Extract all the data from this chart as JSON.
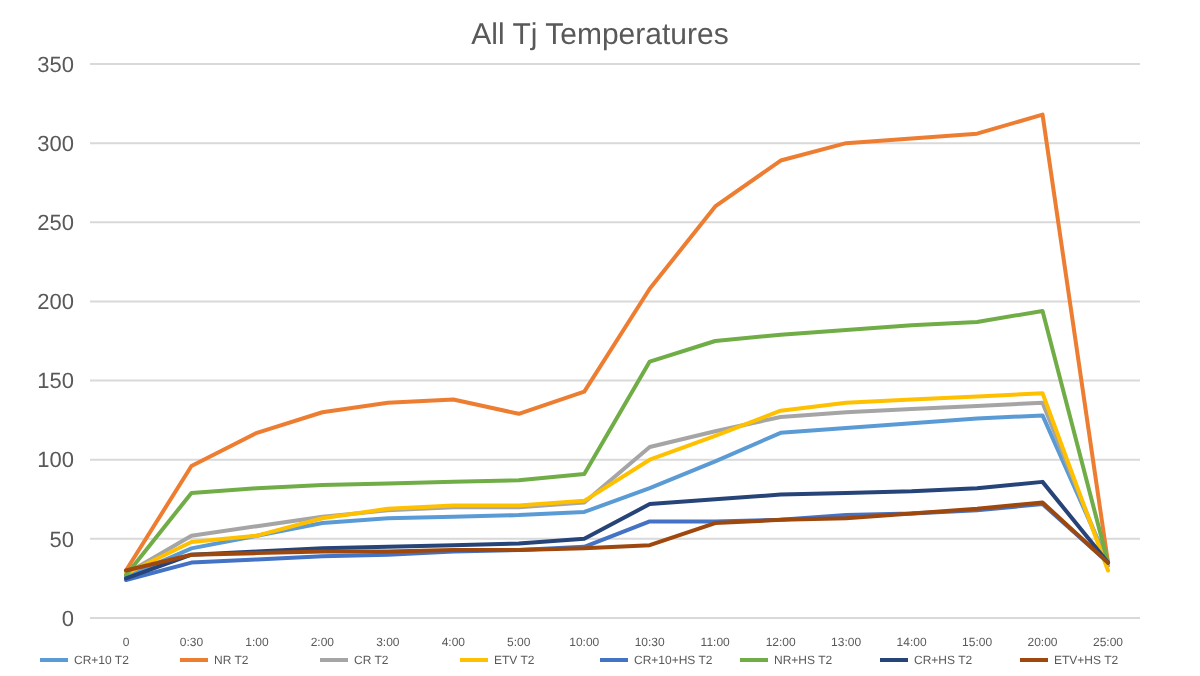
{
  "chart_data": {
    "type": "line",
    "title": "All Tj Temperatures",
    "categories": [
      "0",
      "0:30",
      "1:00",
      "2:00",
      "3:00",
      "4:00",
      "5:00",
      "10:00",
      "10:30",
      "11:00",
      "12:00",
      "13:00",
      "14:00",
      "15:00",
      "20:00",
      "25:00"
    ],
    "ylim": [
      0,
      350
    ],
    "yticks": [
      0,
      50,
      100,
      150,
      200,
      250,
      300,
      350
    ],
    "grid": "y",
    "legend": "bottom",
    "marker": "none",
    "line_style": "solid",
    "series": [
      {
        "name": "CR+10 T2",
        "color": "#5b9bd5",
        "values": [
          26,
          44,
          52,
          60,
          63,
          64,
          65,
          67,
          82,
          99,
          117,
          120,
          123,
          126,
          128,
          35
        ]
      },
      {
        "name": "NR T2",
        "color": "#ed7d31",
        "values": [
          30,
          96,
          117,
          130,
          136,
          138,
          129,
          143,
          208,
          260,
          289,
          300,
          303,
          306,
          318,
          35
        ]
      },
      {
        "name": "CR T2",
        "color": "#a5a5a5",
        "values": [
          28,
          52,
          58,
          64,
          68,
          70,
          70,
          73,
          108,
          118,
          127,
          130,
          132,
          134,
          136,
          33
        ]
      },
      {
        "name": "ETV T2",
        "color": "#ffc000",
        "values": [
          28,
          48,
          52,
          63,
          69,
          71,
          71,
          74,
          100,
          115,
          131,
          136,
          138,
          140,
          142,
          30
        ]
      },
      {
        "name": "CR+10+HS T2",
        "color": "#4472c4",
        "values": [
          24,
          35,
          37,
          39,
          40,
          42,
          43,
          45,
          61,
          61,
          62,
          65,
          66,
          68,
          72,
          35
        ]
      },
      {
        "name": "NR+HS T2",
        "color": "#70ad47",
        "values": [
          27,
          79,
          82,
          84,
          85,
          86,
          87,
          91,
          162,
          175,
          179,
          182,
          185,
          187,
          194,
          35
        ]
      },
      {
        "name": "CR+HS T2",
        "color": "#264478",
        "values": [
          25,
          40,
          42,
          44,
          45,
          46,
          47,
          50,
          72,
          75,
          78,
          79,
          80,
          82,
          86,
          35
        ]
      },
      {
        "name": "ETV+HS T2",
        "color": "#9e480e",
        "values": [
          30,
          40,
          41,
          42,
          42,
          43,
          43,
          44,
          46,
          60,
          62,
          63,
          66,
          69,
          73,
          35
        ]
      }
    ]
  }
}
